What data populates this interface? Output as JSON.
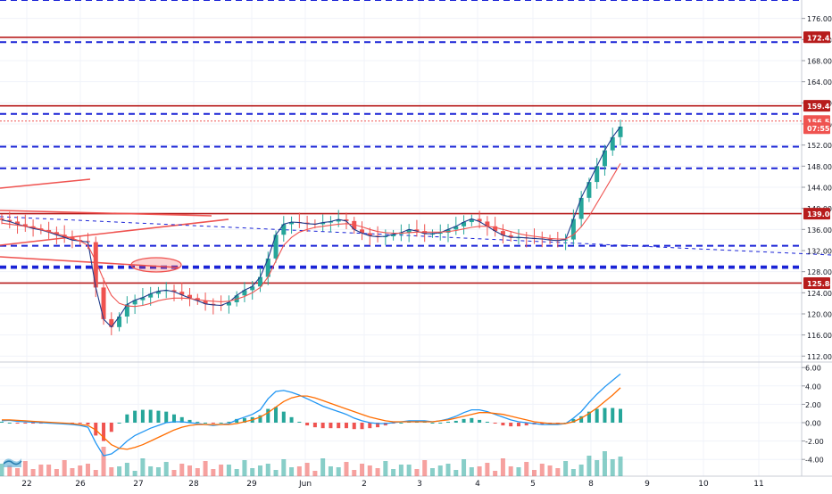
{
  "chart_data": [
    {
      "type": "line",
      "title": "",
      "ylim": [
        110,
        180
      ],
      "y_ticks": [
        "176.00",
        "172.00",
        "168.00",
        "164.00",
        "160.00",
        "156.00",
        "152.00",
        "148.00",
        "144.00",
        "140.00",
        "136.00",
        "132.00",
        "128.00",
        "124.00",
        "120.00",
        "116.00",
        "112.00"
      ],
      "x_ticks": [
        "22",
        "26",
        "27",
        "28",
        "29",
        "Jun",
        "2",
        "3",
        "4",
        "5",
        "8",
        "9",
        "10",
        "11"
      ],
      "price_labels": [
        {
          "text": "172.43",
          "value": 172.43,
          "color": "#b71c1c"
        },
        {
          "text": "159.44",
          "value": 159.44,
          "color": "#b71c1c"
        },
        {
          "text": "156.54",
          "value": 156.54,
          "color": "#ef5350"
        },
        {
          "text": "07:55",
          "value": 155.2,
          "color": "#ef5350"
        },
        {
          "text": "139.00",
          "value": 139.0,
          "color": "#b71c1c"
        },
        {
          "text": "125.84",
          "value": 125.84,
          "color": "#b71c1c"
        }
      ],
      "solid_levels": [
        172.43,
        159.44,
        139.0,
        125.84
      ],
      "dashed_levels": [
        179.5,
        171.5,
        157.9,
        151.7,
        147.6,
        132.9,
        129.0,
        128.7
      ],
      "last_price": 156.54,
      "grid": true,
      "colors": {
        "up": "#26a69a",
        "down": "#ef5350",
        "level": "#b71c1c",
        "dashed": "#1a23d6",
        "trendline": "#ef5350",
        "ma_fast": "#1e3a8a",
        "ma_slow": "#ef5350"
      },
      "series": [
        {
          "values": [
            137.8,
            137.5,
            137.0,
            136.6,
            136.2,
            135.9,
            135.5,
            135.0,
            134.5,
            134.0,
            133.8,
            133.6,
            125.0,
            119.0,
            117.5,
            119.5,
            121.8,
            122.6,
            123.1,
            123.8,
            124.3,
            124.5,
            124.2,
            123.6,
            123.0,
            122.5,
            121.9,
            121.7,
            121.6,
            122.2,
            123.5,
            124.5,
            125.2,
            127.0,
            130.5,
            135.0,
            137.0,
            137.4,
            137.3,
            137.1,
            137.0,
            137.3,
            137.5,
            137.9,
            137.6,
            136.0,
            135.3,
            134.8,
            134.6,
            134.7,
            135.1,
            135.4,
            136.0,
            135.7,
            135.2,
            135.2,
            135.4,
            136.0,
            136.6,
            137.4,
            138.0,
            137.5,
            136.6,
            135.7,
            134.9,
            134.5,
            134.5,
            134.4,
            134.3,
            134.2,
            134.0,
            133.9,
            134.1,
            138.0,
            142.0,
            145.0,
            148.0,
            151.0,
            153.5,
            155.5
          ]
        },
        {
          "values": [
            137.2,
            137.0,
            136.8,
            136.6,
            136.4,
            136.0,
            135.6,
            135.2,
            134.8,
            134.3,
            133.8,
            133.0,
            130.0,
            126.5,
            123.5,
            122.0,
            121.5,
            121.4,
            121.6,
            122.0,
            122.5,
            122.8,
            123.0,
            123.0,
            122.9,
            122.7,
            122.5,
            122.4,
            122.3,
            122.4,
            122.8,
            123.3,
            124.0,
            125.0,
            127.0,
            130.0,
            133.0,
            134.5,
            135.5,
            136.0,
            136.4,
            136.6,
            136.8,
            137.0,
            137.1,
            136.9,
            136.5,
            136.0,
            135.6,
            135.4,
            135.3,
            135.3,
            135.4,
            135.5,
            135.5,
            135.5,
            135.5,
            135.6,
            135.8,
            136.1,
            136.4,
            136.6,
            136.6,
            136.4,
            136.0,
            135.6,
            135.2,
            134.9,
            134.7,
            134.5,
            134.3,
            134.2,
            134.2,
            135.0,
            136.5,
            138.5,
            141.0,
            143.5,
            146.0,
            148.5
          ]
        }
      ]
    },
    {
      "type": "bar",
      "title": "",
      "ylim": [
        -6,
        7
      ],
      "y_ticks": [
        "6.00",
        "4.00",
        "2.00",
        "0.00",
        "-2.00",
        "-4.00"
      ],
      "series": [
        {
          "values": [
            0.2,
            0.25,
            0.15,
            0.1,
            0.05,
            0.0,
            -0.05,
            -0.1,
            -0.15,
            -0.2,
            -0.3,
            -0.5,
            -2.2,
            -3.6,
            -3.4,
            -2.8,
            -2.0,
            -1.4,
            -1.0,
            -0.6,
            -0.3,
            0.0,
            0.1,
            0.1,
            0.0,
            -0.1,
            -0.2,
            -0.3,
            -0.2,
            -0.1,
            0.3,
            0.6,
            0.9,
            1.4,
            2.6,
            3.4,
            3.5,
            3.3,
            3.0,
            2.6,
            2.2,
            1.8,
            1.5,
            1.2,
            0.9,
            0.5,
            0.2,
            0.0,
            -0.1,
            -0.1,
            0.0,
            0.1,
            0.2,
            0.2,
            0.2,
            0.1,
            0.2,
            0.4,
            0.7,
            1.1,
            1.4,
            1.4,
            1.2,
            0.9,
            0.6,
            0.3,
            0.1,
            0.0,
            -0.1,
            -0.2,
            -0.2,
            -0.2,
            -0.1,
            0.5,
            1.2,
            2.2,
            3.1,
            3.9,
            4.6,
            5.3
          ]
        },
        {
          "values": [
            0.3,
            0.3,
            0.25,
            0.2,
            0.15,
            0.1,
            0.05,
            0.0,
            -0.05,
            -0.1,
            -0.2,
            -0.3,
            -0.8,
            -1.6,
            -2.4,
            -2.8,
            -2.9,
            -2.7,
            -2.4,
            -2.0,
            -1.6,
            -1.2,
            -0.8,
            -0.5,
            -0.3,
            -0.2,
            -0.2,
            -0.2,
            -0.2,
            -0.2,
            -0.1,
            0.1,
            0.3,
            0.6,
            1.1,
            1.7,
            2.3,
            2.7,
            2.9,
            2.9,
            2.7,
            2.4,
            2.1,
            1.8,
            1.5,
            1.2,
            0.9,
            0.6,
            0.4,
            0.2,
            0.1,
            0.1,
            0.1,
            0.1,
            0.1,
            0.1,
            0.2,
            0.3,
            0.5,
            0.7,
            0.9,
            1.1,
            1.1,
            1.0,
            0.9,
            0.7,
            0.5,
            0.3,
            0.1,
            0.0,
            -0.1,
            -0.1,
            -0.1,
            0.1,
            0.5,
            1.0,
            1.6,
            2.3,
            3.0,
            3.8
          ]
        },
        {
          "values": [
            0.1,
            0.0,
            -0.1,
            -0.1,
            -0.1,
            -0.1,
            -0.1,
            -0.1,
            -0.1,
            -0.1,
            -0.1,
            -0.2,
            -1.4,
            -2.0,
            -1.0,
            0.0,
            0.9,
            1.3,
            1.4,
            1.4,
            1.3,
            1.2,
            0.9,
            0.6,
            0.3,
            0.1,
            0.0,
            -0.1,
            0.0,
            0.1,
            0.4,
            0.5,
            0.6,
            0.8,
            1.5,
            1.7,
            1.2,
            0.6,
            0.1,
            -0.3,
            -0.5,
            -0.6,
            -0.6,
            -0.6,
            -0.6,
            -0.7,
            -0.7,
            -0.6,
            -0.5,
            -0.3,
            -0.1,
            0.0,
            0.1,
            0.1,
            0.1,
            0.0,
            0.0,
            0.1,
            0.2,
            0.4,
            0.5,
            0.3,
            0.1,
            -0.1,
            -0.3,
            -0.4,
            -0.4,
            -0.3,
            -0.2,
            -0.2,
            -0.1,
            -0.1,
            0.0,
            0.4,
            0.7,
            1.2,
            1.5,
            1.6,
            1.6,
            1.5
          ]
        }
      ]
    }
  ]
}
